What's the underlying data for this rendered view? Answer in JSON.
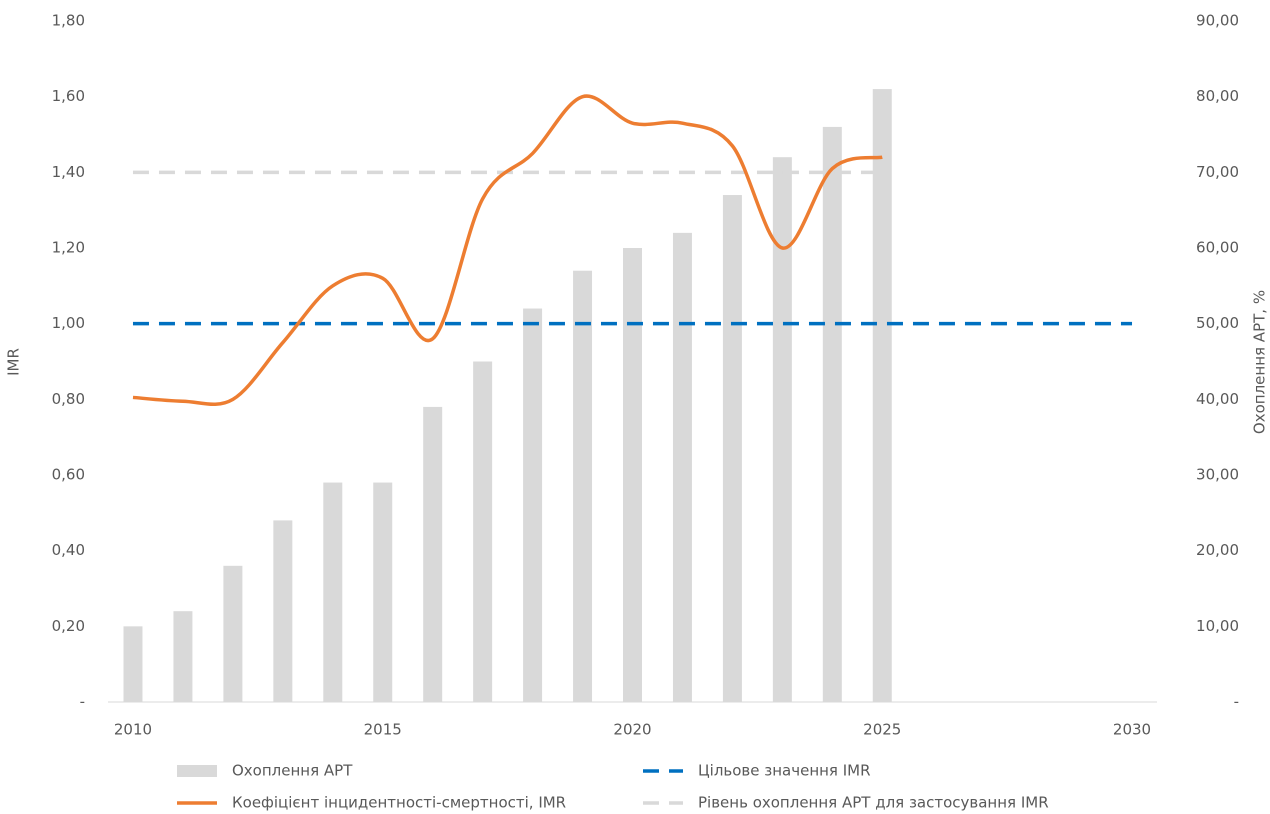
{
  "chart_data": {
    "type": "combo",
    "xlabel": null,
    "ylabel": "IMR",
    "y2label": "Охоплення АРТ, %",
    "xlim": [
      2009.5,
      2030.5
    ],
    "xticks": [
      2010,
      2015,
      2020,
      2025,
      2030
    ],
    "ylim": [
      0,
      1.8
    ],
    "yticks": [
      {
        "value": 0,
        "label": "-"
      },
      {
        "value": 0.2,
        "label": "0,20"
      },
      {
        "value": 0.4,
        "label": "0,40"
      },
      {
        "value": 0.6,
        "label": "0,60"
      },
      {
        "value": 0.8,
        "label": "0,80"
      },
      {
        "value": 1.0,
        "label": "1,00"
      },
      {
        "value": 1.2,
        "label": "1,20"
      },
      {
        "value": 1.4,
        "label": "1,40"
      },
      {
        "value": 1.6,
        "label": "1,60"
      },
      {
        "value": 1.8,
        "label": "1,80"
      }
    ],
    "y2lim": [
      0,
      90
    ],
    "y2ticks": [
      {
        "value": 0,
        "label": "-"
      },
      {
        "value": 10,
        "label": "10,00"
      },
      {
        "value": 20,
        "label": "20,00"
      },
      {
        "value": 30,
        "label": "30,00"
      },
      {
        "value": 40,
        "label": "40,00"
      },
      {
        "value": 50,
        "label": "50,00"
      },
      {
        "value": 60,
        "label": "60,00"
      },
      {
        "value": 70,
        "label": "70,00"
      },
      {
        "value": 80,
        "label": "80,00"
      },
      {
        "value": 90,
        "label": "90,00"
      }
    ],
    "grid": false,
    "legend": "bottom",
    "series": [
      {
        "name": "Охоплення АРТ",
        "type": "bar",
        "axis": "y2",
        "color": "#d9d9d9",
        "x": [
          2010,
          2011,
          2012,
          2013,
          2014,
          2015,
          2016,
          2017,
          2018,
          2019,
          2020,
          2021,
          2022,
          2023,
          2024,
          2025
        ],
        "values": [
          10,
          12,
          18,
          24,
          29,
          29,
          39,
          45,
          52,
          57,
          60,
          62,
          67,
          72,
          76,
          81
        ]
      },
      {
        "name": "Цільове значення IMR",
        "type": "line",
        "dash": true,
        "smooth": false,
        "color": "#0070c0",
        "x": [
          2010,
          2030
        ],
        "values": [
          1.0,
          1.0
        ]
      },
      {
        "name": "Коефіцієнт інцидентності-смертності, IMR",
        "type": "line",
        "dash": false,
        "smooth": true,
        "color": "#ed7d31",
        "x": [
          2010,
          2011,
          2012,
          2013,
          2014,
          2015,
          2016,
          2017,
          2018,
          2019,
          2020,
          2021,
          2022,
          2023,
          2024,
          2025
        ],
        "values": [
          0.805,
          0.795,
          0.8,
          0.95,
          1.1,
          1.12,
          0.96,
          1.33,
          1.45,
          1.6,
          1.53,
          1.53,
          1.47,
          1.2,
          1.41,
          1.44
        ]
      },
      {
        "name": "Рівень охоплення АРТ для застосування IMR",
        "type": "line",
        "axis": "y2",
        "dash": true,
        "smooth": false,
        "color": "#d9d9d9",
        "x": [
          2010,
          2025
        ],
        "values": [
          70,
          70
        ]
      }
    ]
  }
}
